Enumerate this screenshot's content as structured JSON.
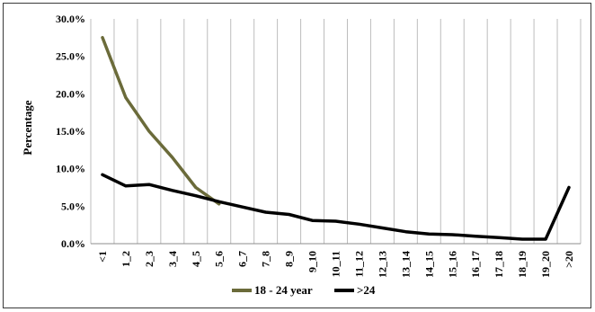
{
  "chart_data": {
    "type": "line",
    "title": "",
    "xlabel": "",
    "ylabel": "Percentage",
    "ylim": [
      0,
      30
    ],
    "yticks": [
      "0.0%",
      "5.0%",
      "10.0%",
      "15.0%",
      "20.0%",
      "25.0%",
      "30.0%"
    ],
    "categories": [
      "<1",
      "1_2",
      "2_3",
      "3_4",
      "4_5",
      "5_6",
      "6_7",
      "7_8",
      "8_9",
      "9_10",
      "10_11",
      "11_12",
      "12_13",
      "13_14",
      "14_15",
      "15_16",
      "16_17",
      "17_18",
      "18_19",
      "19_20",
      ">20"
    ],
    "grid": "vertical",
    "legend_position": "bottom",
    "series": [
      {
        "name": "18 - 24 year",
        "color": "#6b6b3a",
        "values": [
          27.5,
          19.5,
          15.0,
          11.5,
          7.5,
          5.3,
          null,
          null,
          null,
          null,
          null,
          null,
          null,
          null,
          null,
          null,
          null,
          null,
          null,
          null,
          null
        ]
      },
      {
        "name": ">24",
        "color": "#000000",
        "values": [
          9.2,
          7.7,
          7.9,
          7.1,
          6.4,
          5.6,
          4.9,
          4.2,
          3.9,
          3.1,
          3.0,
          2.6,
          2.1,
          1.6,
          1.3,
          1.2,
          1.0,
          0.8,
          0.6,
          0.6,
          7.5
        ]
      }
    ]
  }
}
